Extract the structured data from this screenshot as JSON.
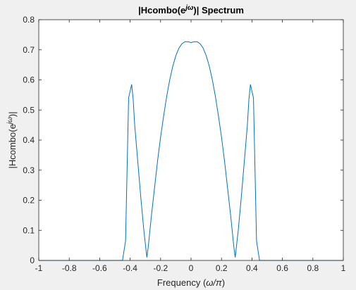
{
  "chart_data": {
    "type": "line",
    "title": {
      "prefix": "|Hcombo(e",
      "sup": "jω",
      "suffix": ")| Spectrum"
    },
    "xlabel": {
      "prefix": "Frequency (",
      "math": "ω/π",
      "suffix": ")"
    },
    "ylabel": {
      "prefix": "|Hcombo(e",
      "sup": "jω",
      "suffix": ")|"
    },
    "xlim": [
      -1,
      1
    ],
    "ylim": [
      0,
      0.8
    ],
    "xticks": [
      "-1",
      "-0.8",
      "-0.6",
      "-0.4",
      "-0.2",
      "0",
      "0.2",
      "0.4",
      "0.6",
      "0.8",
      "1"
    ],
    "yticks": [
      "0",
      "0.1",
      "0.2",
      "0.3",
      "0.4",
      "0.5",
      "0.6",
      "0.7",
      "0.8"
    ],
    "grid": false,
    "series": [
      {
        "color": "#0072bd",
        "x": [
          -1,
          -0.9,
          -0.8,
          -0.7,
          -0.6,
          -0.5,
          -0.45,
          -0.43,
          -0.41,
          -0.39,
          -0.38,
          -0.37,
          -0.35,
          -0.33,
          -0.31,
          -0.29,
          -0.28,
          -0.26,
          -0.24,
          -0.22,
          -0.2,
          -0.18,
          -0.16,
          -0.14,
          -0.12,
          -0.1,
          -0.08,
          -0.06,
          -0.04,
          -0.02,
          0,
          0.02,
          0.04,
          0.06,
          0.08,
          0.1,
          0.12,
          0.14,
          0.16,
          0.18,
          0.2,
          0.22,
          0.24,
          0.26,
          0.28,
          0.29,
          0.31,
          0.33,
          0.35,
          0.37,
          0.38,
          0.39,
          0.41,
          0.43,
          0.45,
          0.5,
          0.6,
          0.7,
          0.8,
          0.9,
          1
        ],
        "y": [
          0,
          0,
          0,
          0,
          0,
          0,
          0,
          0.065,
          0.54,
          0.585,
          0.535,
          0.45,
          0.33,
          0.21,
          0.1,
          0.01,
          0.05,
          0.15,
          0.24,
          0.33,
          0.41,
          0.48,
          0.545,
          0.6,
          0.645,
          0.68,
          0.705,
          0.72,
          0.727,
          0.727,
          0.724,
          0.727,
          0.727,
          0.72,
          0.705,
          0.68,
          0.645,
          0.6,
          0.545,
          0.48,
          0.41,
          0.33,
          0.24,
          0.15,
          0.05,
          0.01,
          0.1,
          0.21,
          0.33,
          0.45,
          0.535,
          0.585,
          0.54,
          0.065,
          0,
          0,
          0,
          0,
          0,
          0,
          0
        ]
      }
    ]
  }
}
